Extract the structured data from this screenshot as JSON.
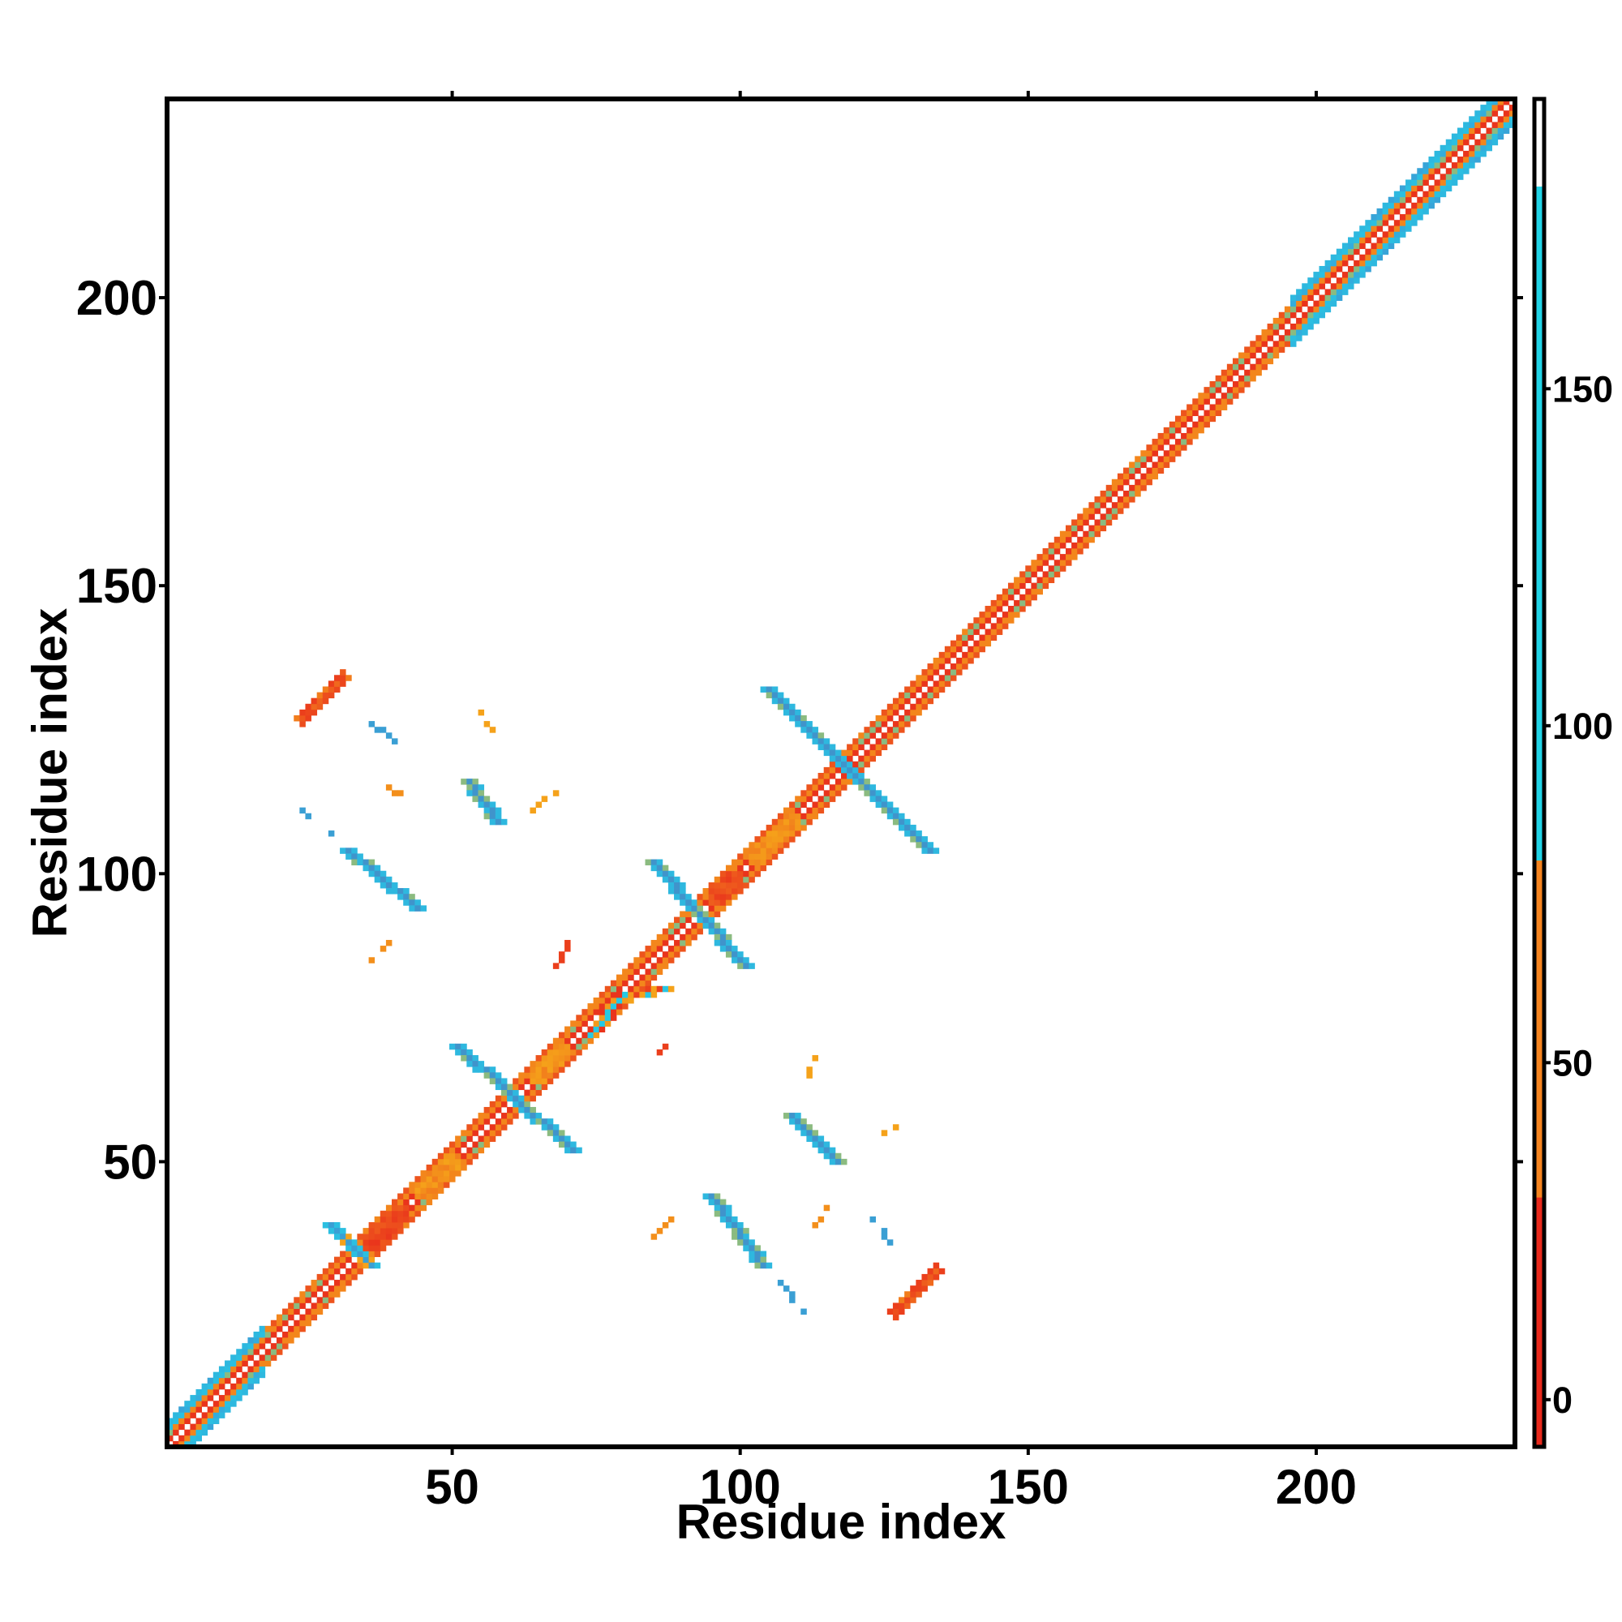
{
  "chart_data": {
    "type": "heatmap",
    "title": "",
    "xlabel": "Residue index",
    "ylabel": "Residue index",
    "xlim": [
      1,
      234
    ],
    "ylim": [
      1,
      234
    ],
    "x_ticks": [
      50,
      100,
      150,
      200
    ],
    "y_ticks": [
      50,
      100,
      150,
      200
    ],
    "x_tick_labels": [
      "50",
      "100",
      "150",
      "200"
    ],
    "y_tick_labels": [
      "50",
      "100",
      "150",
      "200"
    ],
    "grid": false,
    "colorbar": {
      "placement": "right",
      "range": [
        -7,
        193
      ],
      "ticks": [
        0,
        50,
        100,
        150
      ],
      "tick_labels": [
        "0",
        "50",
        "100",
        "150"
      ],
      "segments": [
        {
          "from": -7,
          "to": 30,
          "color": "#e8291c"
        },
        {
          "from": 30,
          "to": 80,
          "color": "#f5841f"
        },
        {
          "from": 80,
          "to": 180,
          "color": "#21d3e6"
        },
        {
          "from": 180,
          "to": 193,
          "color": "#ffffff"
        }
      ],
      "gradient": [
        {
          "value": 0,
          "color": "#e8291c"
        },
        {
          "value": 30,
          "color": "#f06a1d"
        },
        {
          "value": 60,
          "color": "#f5a21a"
        },
        {
          "value": 80,
          "color": "#21d3e6"
        },
        {
          "value": 140,
          "color": "#35aadc"
        },
        {
          "value": 180,
          "color": "#4a7dba"
        }
      ]
    },
    "features": [
      {
        "kind": "diagonal",
        "x0": 1,
        "y0": 1,
        "x1": 234,
        "y1": 234,
        "value": 50
      },
      {
        "kind": "strand",
        "x0": 32,
        "y0": 104,
        "x1": 44,
        "y1": 94,
        "value": 160
      },
      {
        "kind": "strand",
        "x0": 53,
        "y0": 116,
        "x1": 58,
        "y1": 109,
        "value": 160
      },
      {
        "kind": "strand",
        "x0": 85,
        "y0": 102,
        "x1": 101,
        "y1": 84,
        "value": 160
      },
      {
        "kind": "strand",
        "x0": 105,
        "y0": 132,
        "x1": 133,
        "y1": 104,
        "value": 160
      },
      {
        "kind": "strand",
        "x0": 51,
        "y0": 70,
        "x1": 71,
        "y1": 52,
        "value": 160
      },
      {
        "kind": "strand",
        "x0": 95,
        "y0": 44,
        "x1": 104,
        "y1": 32,
        "value": 160
      },
      {
        "kind": "strand",
        "x0": 109,
        "y0": 58,
        "x1": 117,
        "y1": 50,
        "value": 160
      },
      {
        "kind": "strand",
        "x0": 29,
        "y0": 39,
        "x1": 36,
        "y1": 32,
        "value": 150
      },
      {
        "kind": "strand",
        "x0": 79,
        "y0": 78,
        "x1": 87,
        "y1": 80,
        "value": 100
      },
      {
        "kind": "strand",
        "x0": 74,
        "y0": 72,
        "x1": 80,
        "y1": 79,
        "value": 95
      },
      {
        "kind": "helix",
        "x0": 24,
        "y0": 127,
        "x1": 31,
        "y1": 134,
        "value": 10
      },
      {
        "kind": "helix",
        "x0": 127,
        "y0": 24,
        "x1": 134,
        "y1": 31,
        "value": 10
      },
      {
        "kind": "blob",
        "x0": 35,
        "y0": 35,
        "x1": 42,
        "y1": 42,
        "value": 5
      },
      {
        "kind": "blob",
        "x0": 95,
        "y0": 95,
        "x1": 100,
        "y1": 100,
        "value": 5
      },
      {
        "kind": "blob",
        "x0": 102,
        "y0": 102,
        "x1": 110,
        "y1": 110,
        "value": 40
      },
      {
        "kind": "blob",
        "x0": 64,
        "y0": 64,
        "x1": 70,
        "y1": 70,
        "value": 40
      },
      {
        "kind": "blob",
        "x0": 44,
        "y0": 44,
        "x1": 51,
        "y1": 51,
        "value": 40
      },
      {
        "kind": "dots",
        "x0": 39,
        "y0": 115,
        "x1": 42,
        "y1": 113,
        "value": 50
      },
      {
        "kind": "dots",
        "x0": 55,
        "y0": 128,
        "x1": 57,
        "y1": 125,
        "value": 60
      },
      {
        "kind": "dots",
        "x0": 64,
        "y0": 111,
        "x1": 68,
        "y1": 114,
        "value": 60
      },
      {
        "kind": "dots",
        "x0": 36,
        "y0": 85,
        "x1": 40,
        "y1": 89,
        "value": 50
      },
      {
        "kind": "dots",
        "x0": 68,
        "y0": 84,
        "x1": 70,
        "y1": 88,
        "value": 10
      },
      {
        "kind": "dots",
        "x0": 84,
        "y0": 68,
        "x1": 88,
        "y1": 70,
        "value": 10
      },
      {
        "kind": "dots",
        "x0": 84,
        "y0": 36,
        "x1": 88,
        "y1": 40,
        "value": 50
      },
      {
        "kind": "dots",
        "x0": 111,
        "y0": 64,
        "x1": 113,
        "y1": 68,
        "value": 60
      },
      {
        "kind": "dots",
        "x0": 113,
        "y0": 39,
        "x1": 115,
        "y1": 42,
        "value": 50
      },
      {
        "kind": "dots",
        "x0": 125,
        "y0": 55,
        "x1": 128,
        "y1": 57,
        "value": 60
      },
      {
        "kind": "dots",
        "x0": 24,
        "y0": 111,
        "x1": 29,
        "y1": 107,
        "value": 150
      },
      {
        "kind": "dots",
        "x0": 36,
        "y0": 126,
        "x1": 40,
        "y1": 123,
        "value": 150
      },
      {
        "kind": "dots",
        "x0": 107,
        "y0": 29,
        "x1": 111,
        "y1": 24,
        "value": 150
      },
      {
        "kind": "dots",
        "x0": 123,
        "y0": 40,
        "x1": 126,
        "y1": 36,
        "value": 150
      }
    ]
  }
}
